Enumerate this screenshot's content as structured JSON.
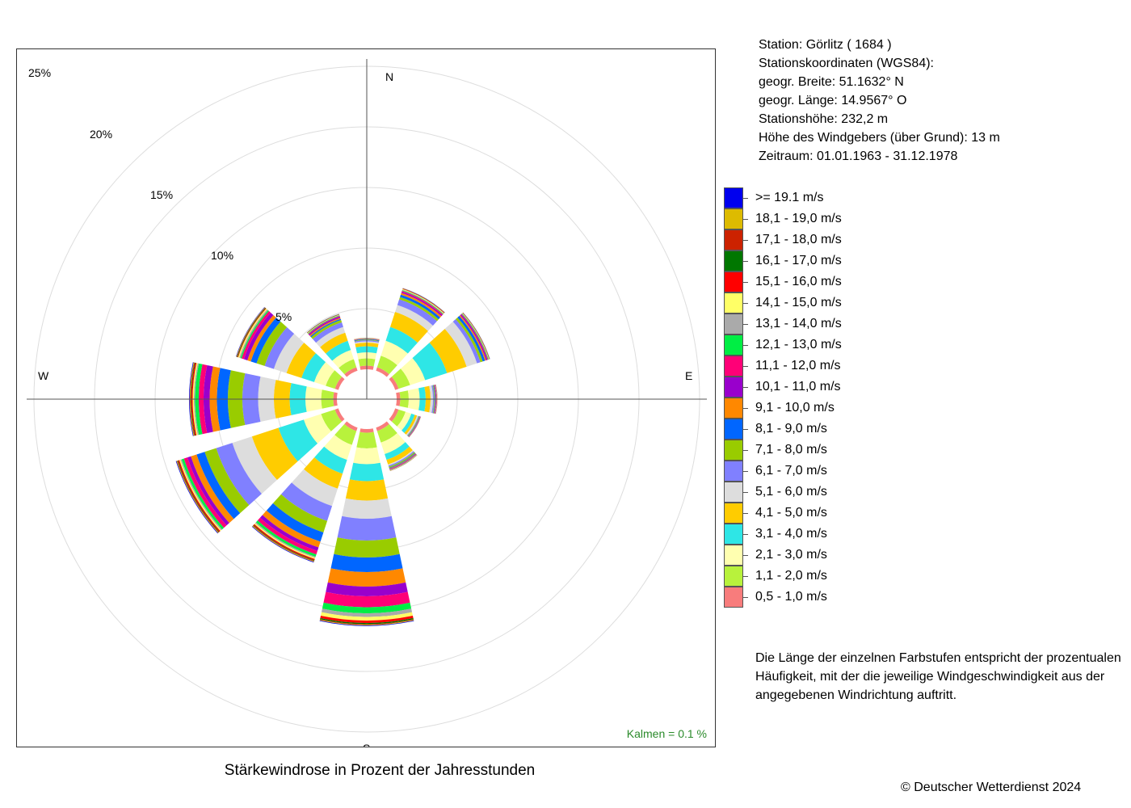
{
  "station": {
    "line1": "Station:  Görlitz  ( 1684 )",
    "line2": "Stationskoordinaten (WGS84):",
    "line3": "geogr. Breite: 51.1632° N",
    "line4": "geogr. Länge: 14.9567° O",
    "line5": "Stationshöhe: 232,2 m",
    "line6": "Höhe des Windgebers (über Grund): 13 m",
    "line7": "Zeitraum: 01.01.1963 - 31.12.1978"
  },
  "title": "Stärkewindrose in Prozent der Jahresstunden",
  "calm_label": "Kalmen  =  0.1 %",
  "note": "Die Länge der einzelnen Farbstufen entspricht der prozentualen Häufigkeit, mit der die jeweilige Windgeschwindigkeit aus der angegebenen Windrichtung auftritt.",
  "copyright": "© Deutscher Wetterdienst  2024",
  "chart_data": {
    "type": "wind-rose",
    "title": "Stärkewindrose in Prozent der Jahresstunden",
    "directions_deg": [
      0,
      30,
      60,
      90,
      120,
      150,
      180,
      210,
      240,
      270,
      300,
      330
    ],
    "cardinal_labels": [
      "N",
      "E",
      "S",
      "W"
    ],
    "ring_labels": [
      "5%",
      "10%",
      "15%",
      "20%",
      "25%"
    ],
    "ring_values": [
      5,
      10,
      15,
      20,
      25
    ],
    "calm_percent": 0.1,
    "speed_classes": [
      {
        "label": "0,5 - 1,0 m/s",
        "color": "#f87c7c"
      },
      {
        "label": "1,1 - 2,0 m/s",
        "color": "#b8f23c"
      },
      {
        "label": "2,1 - 3,0 m/s",
        "color": "#ffffb0"
      },
      {
        "label": "3,1 - 4,0 m/s",
        "color": "#2ee6e6"
      },
      {
        "label": "4,1 - 5,0 m/s",
        "color": "#ffcc00"
      },
      {
        "label": "5,1 - 6,0 m/s",
        "color": "#dddddd"
      },
      {
        "label": "6,1 - 7,0 m/s",
        "color": "#8080ff"
      },
      {
        "label": "7,1 - 8,0 m/s",
        "color": "#99cc00"
      },
      {
        "label": "8,1 - 9,0 m/s",
        "color": "#0066ff"
      },
      {
        "label": "9,1 - 10,0 m/s",
        "color": "#ff8800"
      },
      {
        "label": "10,1 - 11,0 m/s",
        "color": "#9900cc"
      },
      {
        "label": "11,1 - 12,0 m/s",
        "color": "#ff0077"
      },
      {
        "label": "12,1 - 13,0 m/s",
        "color": "#00ee44"
      },
      {
        "label": "13,1 - 14,0 m/s",
        "color": "#aaaaaa"
      },
      {
        "label": "14,1 - 15,0 m/s",
        "color": "#ffff66"
      },
      {
        "label": "15,1 - 16,0 m/s",
        "color": "#ff0000"
      },
      {
        "label": "16,1 - 17,0 m/s",
        "color": "#007700"
      },
      {
        "label": "17,1 - 18,0 m/s",
        "color": "#cc2200"
      },
      {
        "label": "18,1 - 19,0 m/s",
        "color": "#ddbb00"
      },
      {
        "label": ">= 19.1 m/s",
        "color": "#0000ee"
      }
    ],
    "series": [
      {
        "values": [
          0.3,
          0.6,
          0.5,
          0.5,
          0.3,
          0.1,
          0.1,
          0.05,
          0.05,
          0.03,
          0.02,
          0.01,
          0.01,
          0.01,
          0.01,
          0.01,
          0,
          0,
          0,
          0
        ]
      },
      {
        "values": [
          0.3,
          1.0,
          1.3,
          1.2,
          1.3,
          0.6,
          0.5,
          0.2,
          0.2,
          0.15,
          0.1,
          0.08,
          0.05,
          0.05,
          0.05,
          0.03,
          0.02,
          0.02,
          0.01,
          0.01
        ]
      },
      {
        "values": [
          0.3,
          1.0,
          1.3,
          1.9,
          1.7,
          0.9,
          0.3,
          0.2,
          0.2,
          0.1,
          0.1,
          0.05,
          0.05,
          0.03,
          0.03,
          0.02,
          0.02,
          0.01,
          0.01,
          0.01
        ]
      },
      {
        "values": [
          0.3,
          0.7,
          0.9,
          0.5,
          0.4,
          0.2,
          0.1,
          0.05,
          0.05,
          0.04,
          0.04,
          0.03,
          0.02,
          0.02,
          0.01,
          0.01,
          0,
          0,
          0,
          0
        ]
      },
      {
        "values": [
          0.3,
          0.6,
          0.5,
          0.3,
          0.2,
          0.1,
          0.05,
          0.05,
          0.04,
          0.03,
          0.03,
          0.02,
          0.01,
          0.01,
          0.01,
          0,
          0,
          0,
          0,
          0
        ]
      },
      {
        "values": [
          0.3,
          1.0,
          1.0,
          0.5,
          0.4,
          0.1,
          0.1,
          0.1,
          0.05,
          0.05,
          0.04,
          0.03,
          0.02,
          0.02,
          0.02,
          0.01,
          0.01,
          0.01,
          0,
          0
        ]
      },
      {
        "values": [
          0.3,
          1.3,
          1.3,
          1.4,
          1.6,
          1.5,
          1.8,
          1.4,
          1.2,
          1.2,
          0.8,
          0.9,
          0.5,
          0.3,
          0.3,
          0.2,
          0.1,
          0.05,
          0.05,
          0.05
        ]
      },
      {
        "values": [
          0.3,
          1.2,
          1.3,
          1.2,
          1.3,
          1.5,
          1.3,
          1.0,
          0.8,
          0.5,
          0.3,
          0.3,
          0.2,
          0.1,
          0.1,
          0.1,
          0.05,
          0.05,
          0.05,
          0.05
        ]
      },
      {
        "values": [
          0.3,
          1.2,
          1.5,
          2.2,
          2.3,
          1.7,
          1.4,
          1.0,
          0.7,
          0.5,
          0.3,
          0.3,
          0.2,
          0.1,
          0.1,
          0.1,
          0.05,
          0.05,
          0.05,
          0.05
        ]
      },
      {
        "values": [
          0.3,
          1.0,
          1.3,
          1.3,
          1.3,
          1.3,
          1.3,
          1.2,
          0.9,
          0.6,
          0.5,
          0.4,
          0.3,
          0.1,
          0.1,
          0.1,
          0.05,
          0.05,
          0.05,
          0.05
        ]
      },
      {
        "values": [
          0.3,
          0.8,
          1.0,
          1.1,
          1.3,
          1.1,
          0.8,
          0.7,
          0.5,
          0.3,
          0.3,
          0.2,
          0.1,
          0.1,
          0.1,
          0.05,
          0.05,
          0.03,
          0.03,
          0.03
        ]
      },
      {
        "values": [
          0.3,
          0.7,
          0.8,
          0.8,
          0.7,
          0.5,
          0.4,
          0.2,
          0.1,
          0.1,
          0.1,
          0.05,
          0.05,
          0.03,
          0.03,
          0.02,
          0.02,
          0.01,
          0.01,
          0.01
        ]
      }
    ]
  }
}
